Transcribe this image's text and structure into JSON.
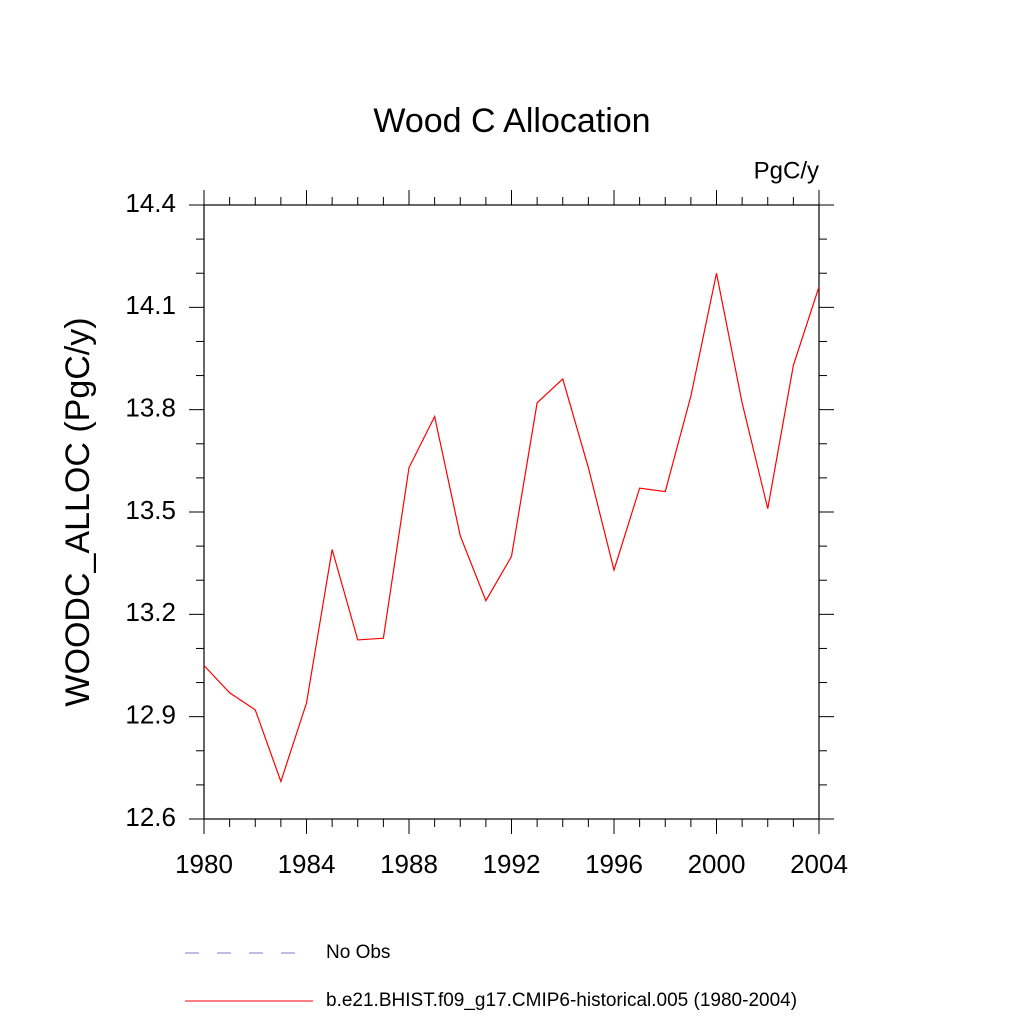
{
  "chart_data": {
    "type": "line",
    "title": "Wood C Allocation",
    "units_label": "PgC/y",
    "ylabel": "WOODC_ALLOC  (PgC/y)",
    "x": [
      1980,
      1981,
      1982,
      1983,
      1984,
      1985,
      1986,
      1987,
      1988,
      1989,
      1990,
      1991,
      1992,
      1993,
      1994,
      1995,
      1996,
      1997,
      1998,
      1999,
      2000,
      2001,
      2002,
      2003,
      2004
    ],
    "series": [
      {
        "name": "b.e21.BHIST.f09_g17.CMIP6-historical.005 (1980-2004)",
        "color": "#ff0000",
        "values": [
          13.05,
          12.97,
          12.92,
          12.71,
          12.94,
          13.39,
          13.125,
          13.13,
          13.63,
          13.78,
          13.43,
          13.24,
          13.37,
          13.82,
          13.89,
          13.63,
          13.33,
          13.57,
          13.56,
          13.84,
          14.2,
          13.82,
          13.51,
          13.93,
          14.16
        ]
      }
    ],
    "reference": {
      "name": "No Obs",
      "color": "#7f7fcc",
      "dash": "dashed"
    },
    "xlim": [
      1980,
      2004
    ],
    "xticks": [
      1980,
      1984,
      1988,
      1992,
      1996,
      2000,
      2004
    ],
    "xminorticks": [
      1981,
      1982,
      1983,
      1985,
      1986,
      1987,
      1989,
      1990,
      1991,
      1993,
      1994,
      1995,
      1997,
      1998,
      1999,
      2001,
      2002,
      2003
    ],
    "ylim": [
      12.6,
      14.4
    ],
    "yticks": [
      12.6,
      12.9,
      13.2,
      13.5,
      13.8,
      14.1,
      14.4
    ],
    "yminorticks": [
      12.7,
      12.8,
      13.0,
      13.1,
      13.3,
      13.4,
      13.6,
      13.7,
      13.9,
      14.0,
      14.2,
      14.3
    ],
    "grid": false
  }
}
